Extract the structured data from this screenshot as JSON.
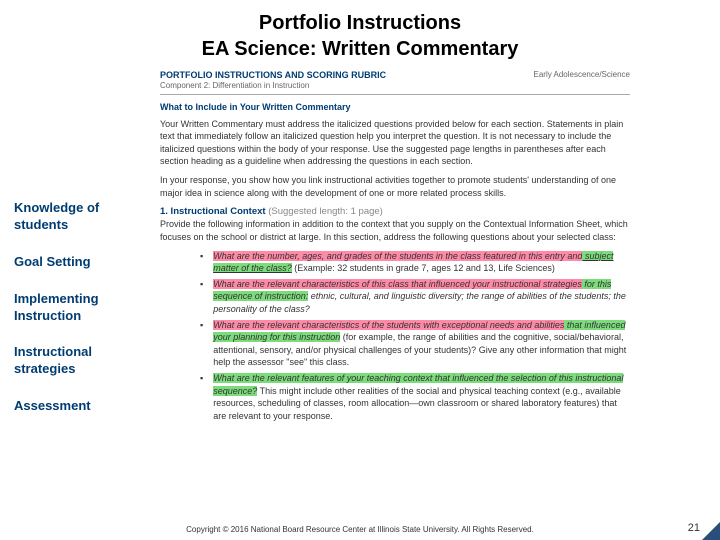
{
  "title_line1": "Portfolio Instructions",
  "title_line2": "EA Science: Written Commentary",
  "doc": {
    "header_main": "PORTFOLIO INSTRUCTIONS AND SCORING RUBRIC",
    "header_sub": "Component 2: Differentiation in Instruction",
    "header_right": "Early Adolescence/Science",
    "section_head": "What to Include in Your Written Commentary",
    "para1": "Your Written Commentary must address the italicized questions provided below for each section. Statements in plain text that immediately follow an italicized question help you interpret the question. It is not necessary to include the italicized questions within the body of your response. Use the suggested page lengths in parentheses after each section heading as a guideline when addressing the questions in each section.",
    "para2": "In your response, you show how you link instructional activities together to promote students' understanding of one major idea in science along with the development of one or more related process skills.",
    "context_num": "1. Instructional Context",
    "context_sug": "(Suggested length: 1 page)",
    "context_intro": "Provide the following information in addition to the context that you supply on the Contextual Information Sheet, which focuses on the school or district at large. In this section, address the following questions about your selected class:",
    "b1a": "What are the number, ages, and grades of the students in the class featured in this entry and",
    "b1b": " subject matter of the class?",
    "b1c": " (Example: 32 students in grade 7, ages 12 and 13, Life Sciences)",
    "b2a": "What are the relevant characteristics of this class that influenced your instructional strategies",
    "b2b": " for this sequence of instruction:",
    "b2c": " ethnic, cultural, and linguistic diversity; the range of abilities of the students; the personality of the class?",
    "b3a": "What are the relevant characteristics of the students with exceptional needs and abilities",
    "b3b": " that influenced your planning for this instruction",
    "b3c": " (for example, the range of abilities and the cognitive, social/behavioral, attentional, sensory, and/or physical challenges of your students)? Give any other information that might help the assessor \"see\" this class.",
    "b4a": "What are the relevant features of your teaching context that influenced the selection of this instructional sequence?",
    "b4b": " This might include other realities of the social and physical teaching context (e.g., available resources, scheduling of classes, room allocation—own classroom or shared laboratory features) that are relevant to your response."
  },
  "sidebar": {
    "s1": "Knowledge of students",
    "s2": "Goal Setting",
    "s3": "Implementing Instruction",
    "s4": "Instructional strategies",
    "s5": "Assessment"
  },
  "footer": "Copyright © 2016 National Board Resource Center at Illinois State University. All Rights Reserved.",
  "page": "21"
}
